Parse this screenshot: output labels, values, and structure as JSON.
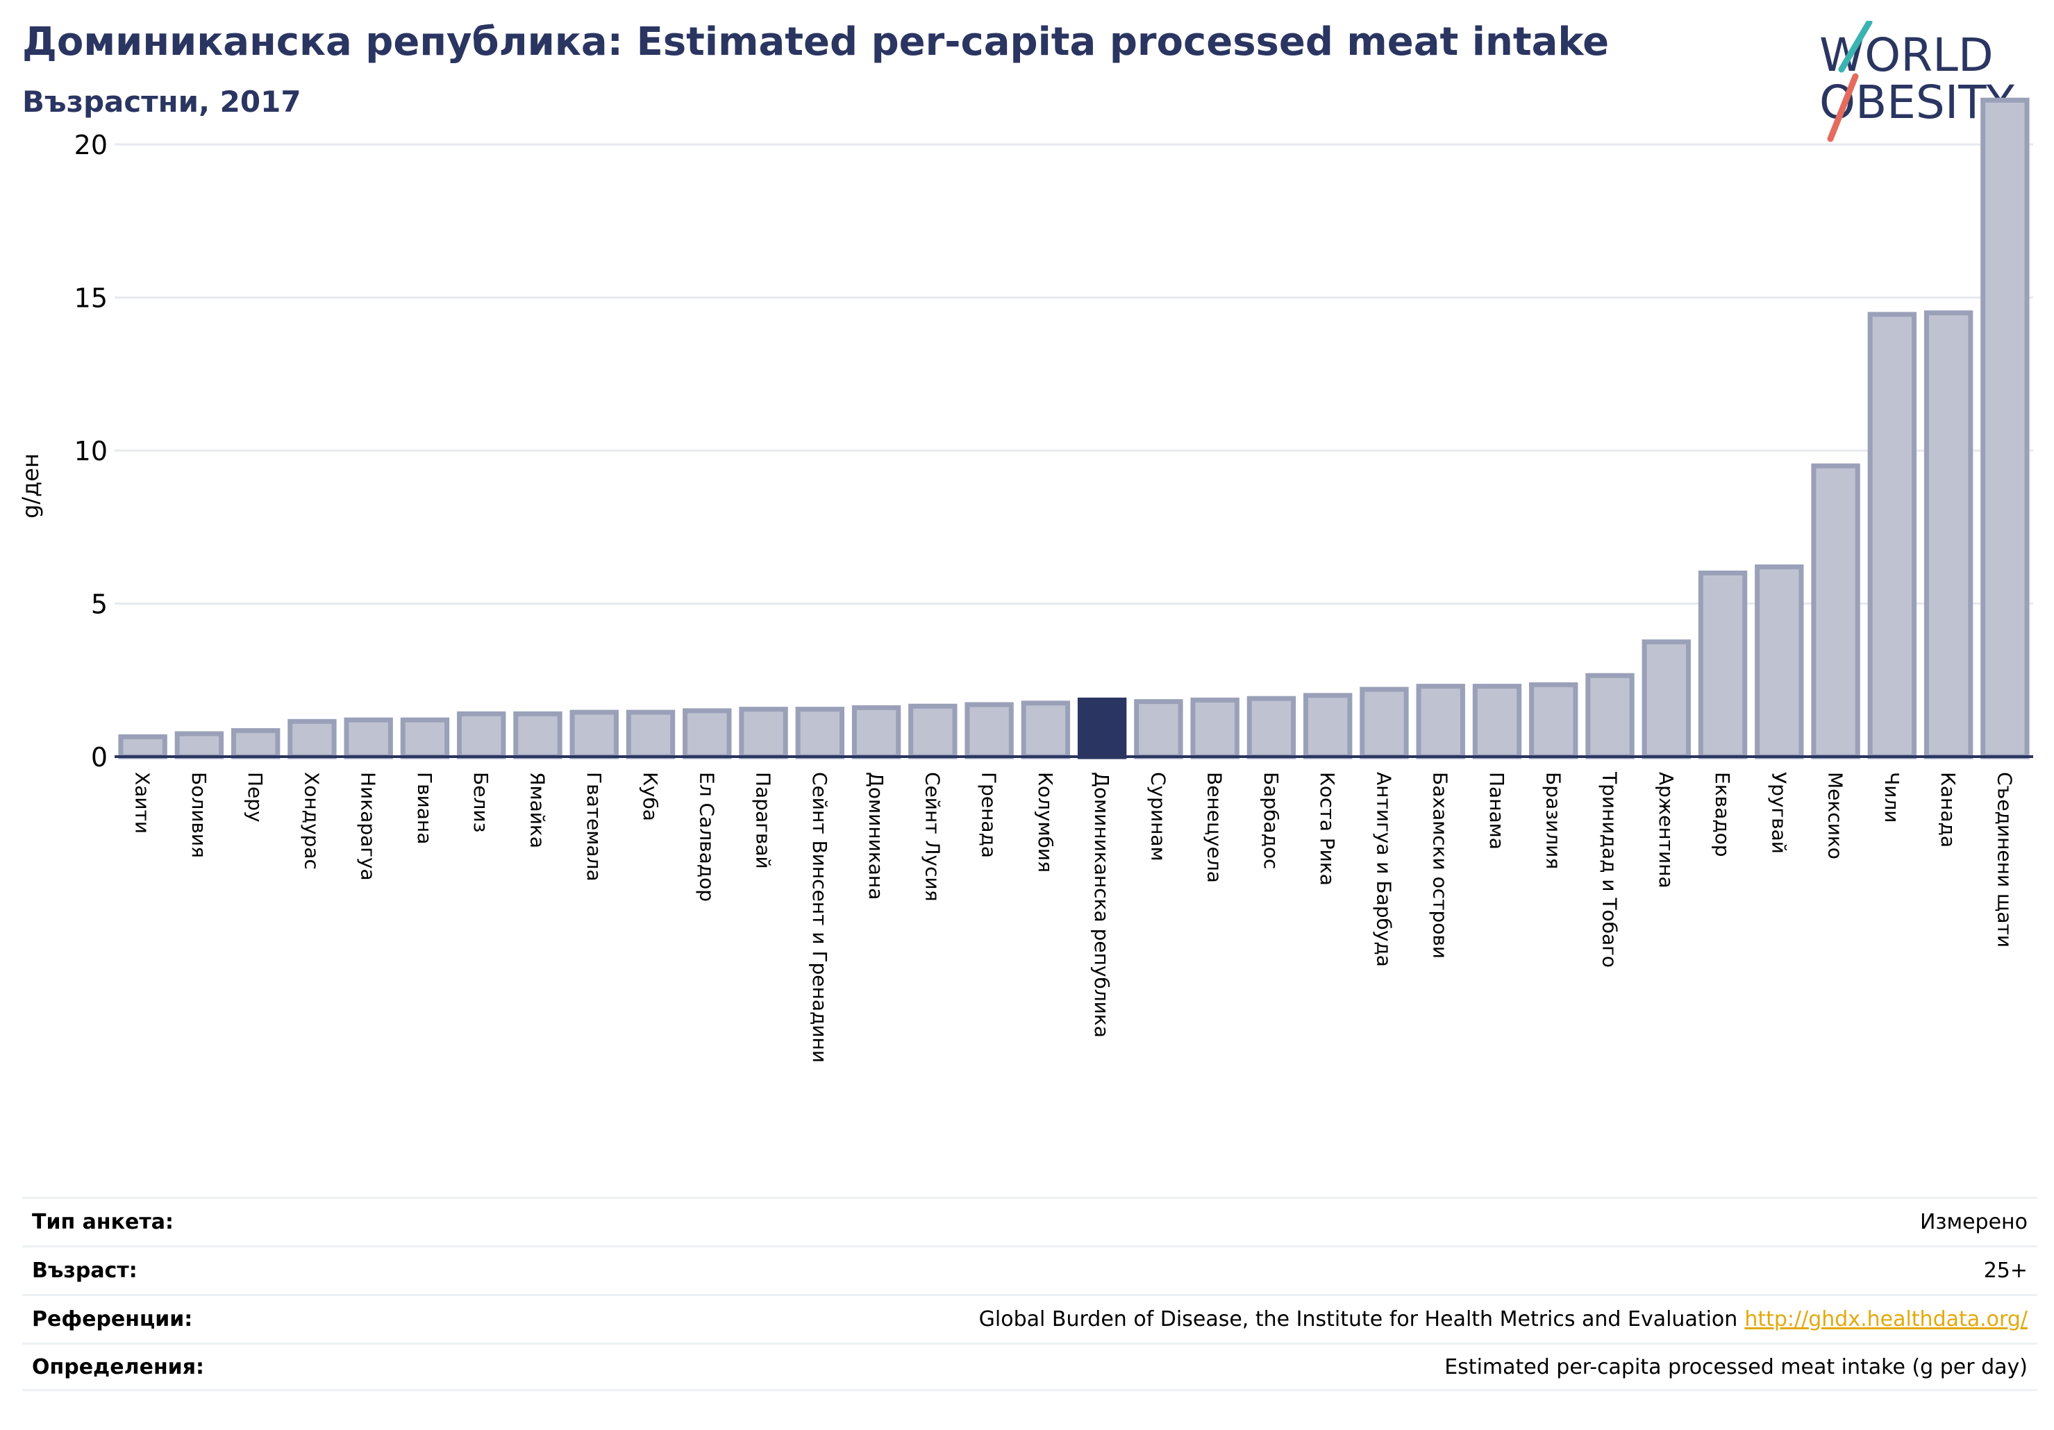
{
  "header": {
    "title": "Доминиканска република: Estimated per-capita processed meat intake",
    "subtitle": "Възрастни, 2017"
  },
  "logo": {
    "line1": "WORLD",
    "line2": "OBESITY"
  },
  "colors": {
    "bar": "#bfc3d1",
    "bar_stroke": "#9aa0b8",
    "highlight": "#2a3561",
    "grid": "#e6e9ee",
    "axis": "#2a3561"
  },
  "chart_data": {
    "type": "bar",
    "ylabel": "g/ден",
    "ylim": [
      0,
      22
    ],
    "yticks": [
      0,
      5,
      10,
      15,
      20
    ],
    "highlight": "Доминиканска република",
    "categories": [
      "Хаити",
      "Боливия",
      "Перу",
      "Хондурас",
      "Никарагуа",
      "Гвиана",
      "Белиз",
      "Ямайка",
      "Гватемала",
      "Куба",
      "Ел Салвадор",
      "Парагвай",
      "Сейнт Винсент и Гренадини",
      "Доминикана",
      "Сейнт Лусия",
      "Гренада",
      "Колумбия",
      "Доминиканска република",
      "Суринам",
      "Венецуела",
      "Барбадос",
      "Коста Рика",
      "Антигуа и Барбуда",
      "Бахамски острови",
      "Панама",
      "Бразилия",
      "Тринидад и Тобаго",
      "Аржентина",
      "Еквадор",
      "Уругвай",
      "Мексико",
      "Чили",
      "Канада",
      "Съединени щати"
    ],
    "values": [
      0.65,
      0.75,
      0.85,
      1.15,
      1.2,
      1.2,
      1.4,
      1.4,
      1.45,
      1.45,
      1.5,
      1.55,
      1.55,
      1.6,
      1.65,
      1.7,
      1.75,
      1.85,
      1.8,
      1.85,
      1.9,
      2.0,
      2.2,
      2.3,
      2.3,
      2.35,
      2.65,
      3.75,
      6.0,
      6.2,
      9.5,
      14.45,
      14.5,
      21.45
    ]
  },
  "info": [
    {
      "key": "Тип анкета:",
      "value": "Измерено"
    },
    {
      "key": "Възраст:",
      "value": "25+"
    },
    {
      "key": "Референции:",
      "value": "Global Burden of Disease, the Institute for Health Metrics and Evaluation",
      "link": "http://ghdx.healthdata.org/"
    },
    {
      "key": "Определения:",
      "value": "Estimated per-capita processed meat intake (g per day)"
    }
  ]
}
